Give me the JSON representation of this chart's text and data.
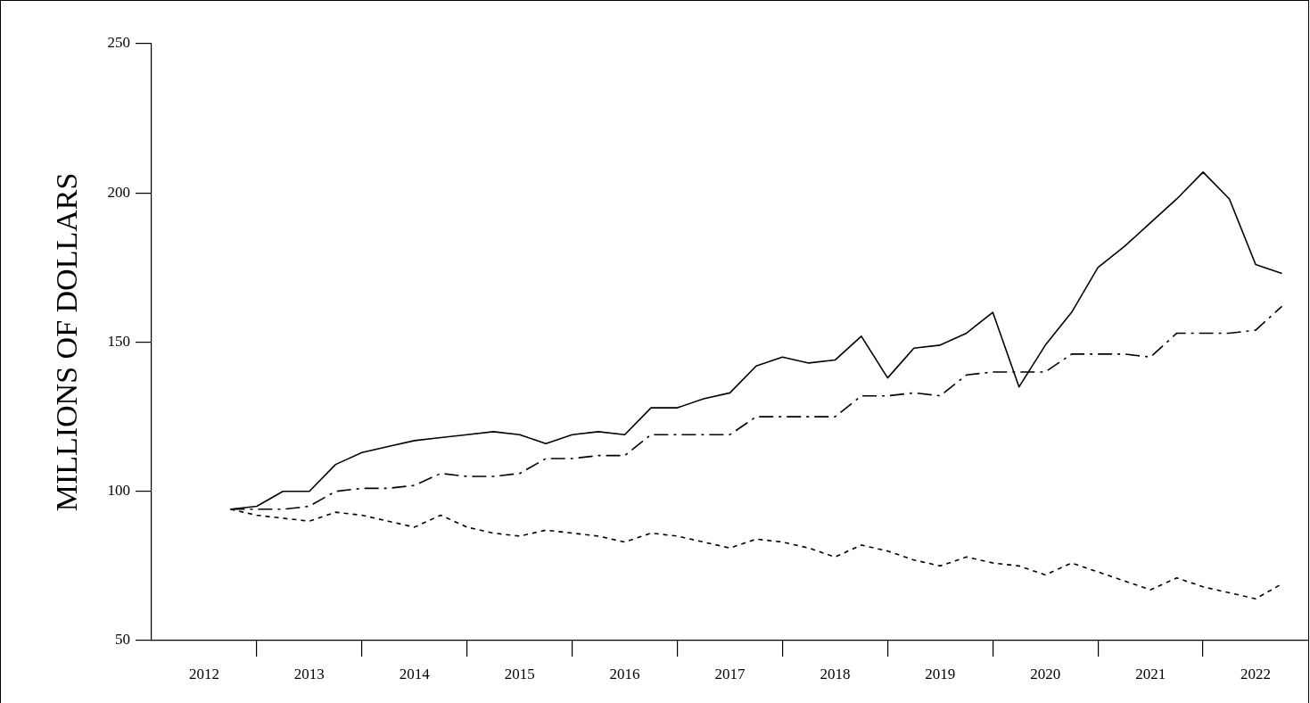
{
  "chart_data": {
    "type": "line",
    "ylabel": "MILLIONS OF DOLLARS",
    "x": [
      2012.75,
      2013,
      2013.25,
      2013.5,
      2013.75,
      2014,
      2014.25,
      2014.5,
      2014.75,
      2015,
      2015.25,
      2015.5,
      2015.75,
      2016,
      2016.25,
      2016.5,
      2016.75,
      2017,
      2017.25,
      2017.5,
      2017.75,
      2018,
      2018.25,
      2018.5,
      2018.75,
      2019,
      2019.25,
      2019.5,
      2019.75,
      2020,
      2020.25,
      2020.5,
      2020.75,
      2021,
      2021.25,
      2021.5,
      2021.75,
      2022,
      2022.25,
      2022.5,
      2022.75
    ],
    "series": [
      {
        "color": "#000000",
        "line_style": "solid",
        "values": [
          94,
          95,
          100,
          100,
          109,
          113,
          115,
          117,
          118,
          119,
          120,
          119,
          116,
          119,
          120,
          119,
          128,
          128,
          131,
          133,
          142,
          145,
          143,
          144,
          152,
          138,
          148,
          149,
          153,
          160,
          135,
          149,
          160,
          175,
          182,
          190,
          198,
          207,
          198,
          176,
          173
        ]
      },
      {
        "color": "#000000",
        "line_style": "dashed",
        "values": [
          94,
          94,
          94,
          95,
          100,
          101,
          101,
          102,
          106,
          105,
          105,
          106,
          111,
          111,
          112,
          112,
          119,
          119,
          119,
          119,
          125,
          125,
          125,
          125,
          132,
          132,
          133,
          132,
          139,
          140,
          140,
          140,
          146,
          146,
          146,
          145,
          153,
          153,
          153,
          154,
          162
        ]
      },
      {
        "color": "#000000",
        "line_style": "dotted",
        "values": [
          94,
          92,
          91,
          90,
          93,
          92,
          90,
          88,
          92,
          88,
          86,
          85,
          87,
          86,
          85,
          83,
          86,
          85,
          83,
          81,
          84,
          83,
          81,
          78,
          82,
          80,
          77,
          75,
          78,
          76,
          75,
          72,
          76,
          73,
          70,
          67,
          71,
          68,
          66,
          64,
          69
        ]
      }
    ],
    "xlim": [
      2012,
      2023
    ],
    "xticks": [
      {
        "value": 2012.5,
        "label": "2012"
      },
      {
        "value": 2013.5,
        "label": "2013"
      },
      {
        "value": 2014.5,
        "label": "2014"
      },
      {
        "value": 2015.5,
        "label": "2015"
      },
      {
        "value": 2016.5,
        "label": "2016"
      },
      {
        "value": 2017.5,
        "label": "2017"
      },
      {
        "value": 2018.5,
        "label": "2018"
      },
      {
        "value": 2019.5,
        "label": "2019"
      },
      {
        "value": 2020.5,
        "label": "2020"
      },
      {
        "value": 2021.5,
        "label": "2021"
      },
      {
        "value": 2022.5,
        "label": "2022"
      }
    ],
    "ylim": [
      50,
      250
    ],
    "yticks": [
      50,
      100,
      150,
      200,
      250
    ],
    "grid": false,
    "legend": false,
    "marker": "none"
  }
}
